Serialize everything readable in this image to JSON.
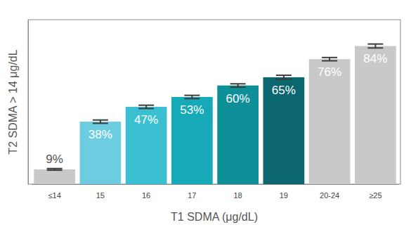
{
  "chart_data": {
    "type": "bar",
    "x_label": "T1 SDMA (μg/dL)",
    "y_label": "T2 SDMA > 14 μg/dL",
    "categories": [
      "≤14",
      "15",
      "16",
      "17",
      "18",
      "19",
      "20-24",
      "≥25"
    ],
    "values": [
      9,
      38,
      47,
      53,
      60,
      65,
      76,
      84
    ],
    "value_labels": [
      "9%",
      "38%",
      "47%",
      "53%",
      "60%",
      "65%",
      "76%",
      "84%"
    ],
    "errors": [
      0.5,
      1,
      1,
      1,
      1,
      1.2,
      1,
      1.2
    ],
    "colors": [
      "#c9c9c9",
      "#6dcde0",
      "#3bc0d2",
      "#16aab9",
      "#0e8e97",
      "#0b6670",
      "#c9c9c9",
      "#c9c9c9"
    ],
    "ylim": [
      0,
      100
    ],
    "yticks": [],
    "tick_labels": "x",
    "data_labels": true,
    "grid": false
  }
}
